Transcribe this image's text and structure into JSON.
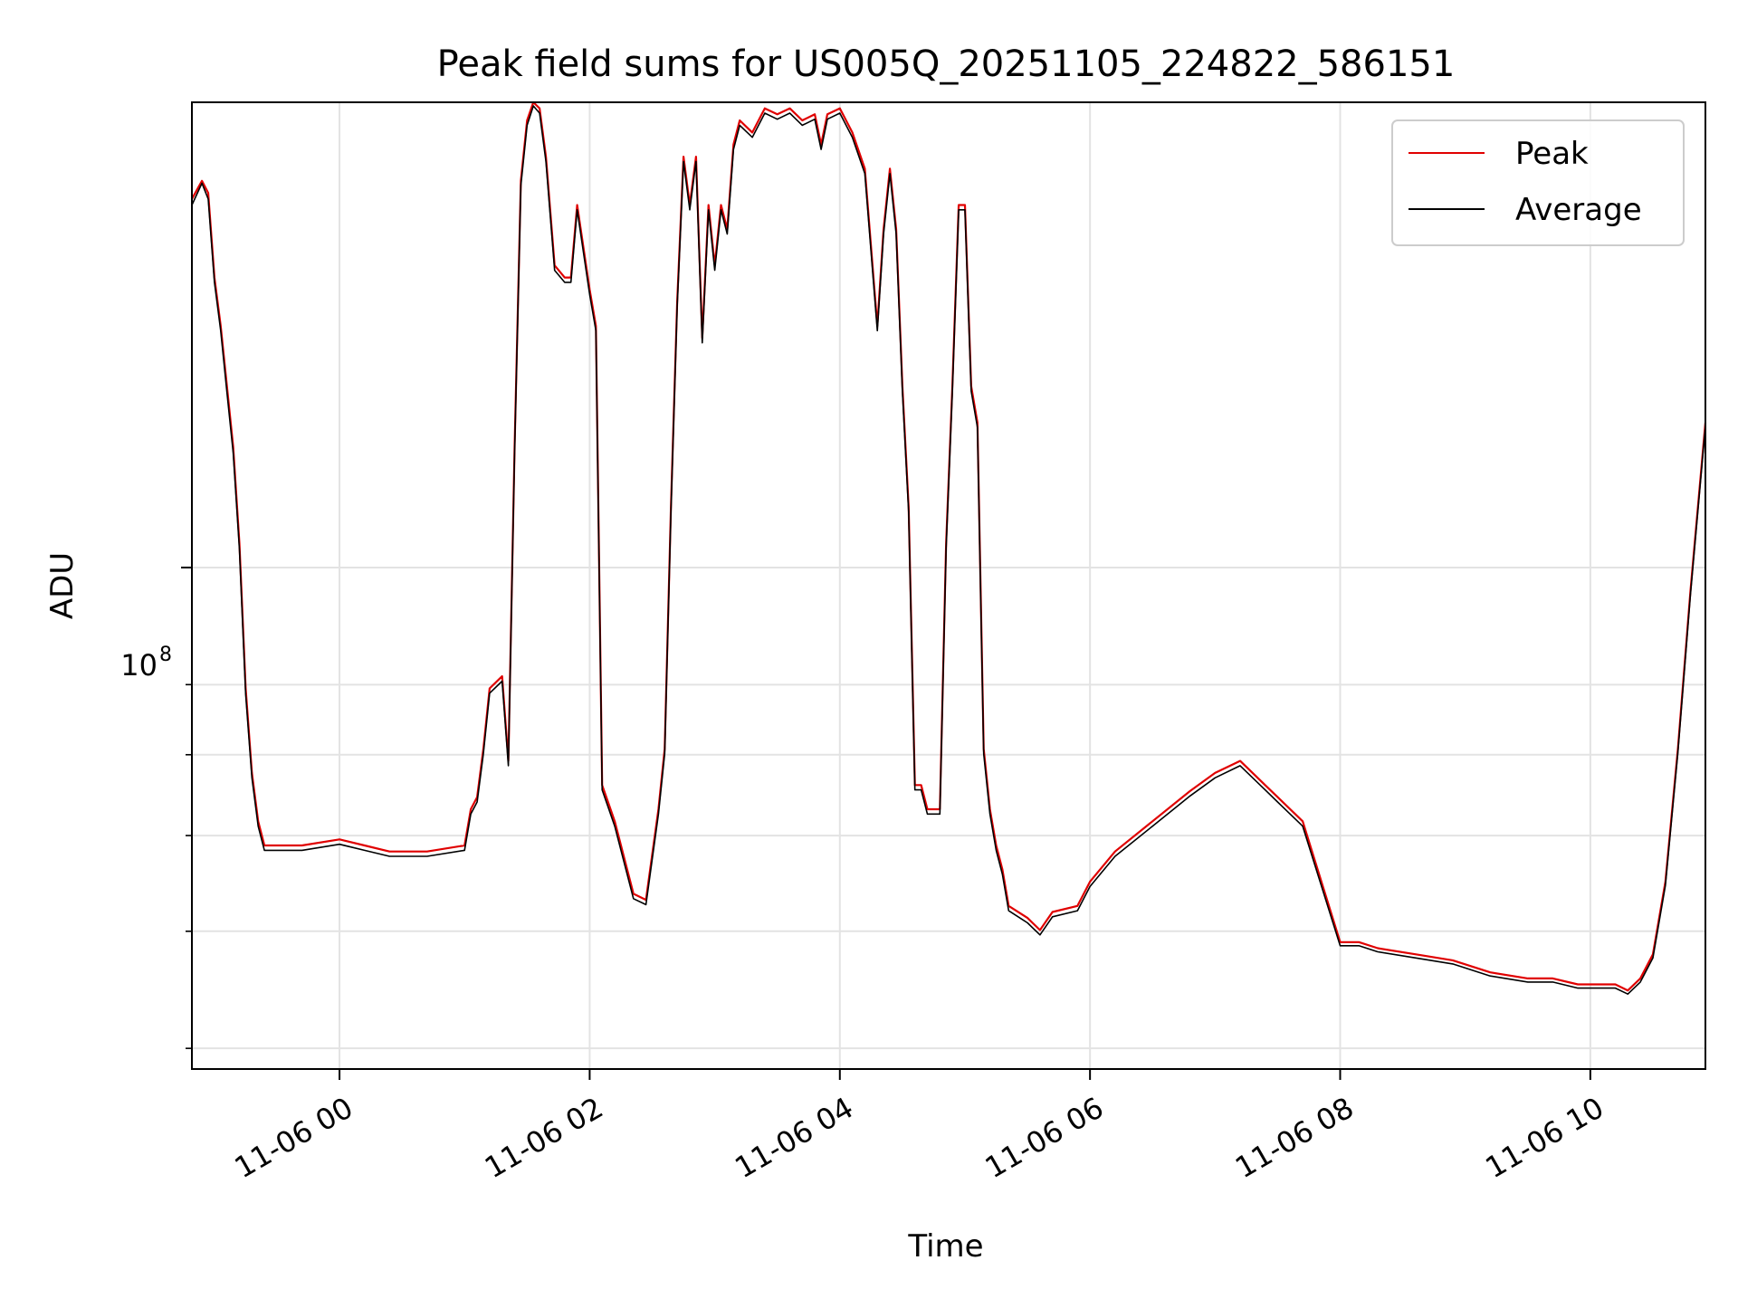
{
  "chart_data": {
    "type": "line",
    "title": "Peak field sums for US005Q_20251105_224822_586151",
    "xlabel": "Time",
    "ylabel": "ADU",
    "xlim": [
      -1.18,
      10.92
    ],
    "ylim_log10": [
      7.585,
      8.385
    ],
    "yscale": "log",
    "grid": true,
    "legend_position": "top-right",
    "x_ticks": [
      {
        "value": 0,
        "label": "11-06 00"
      },
      {
        "value": 2,
        "label": "11-06 02"
      },
      {
        "value": 4,
        "label": "11-06 04"
      },
      {
        "value": 6,
        "label": "11-06 06"
      },
      {
        "value": 8,
        "label": "11-06 08"
      },
      {
        "value": 10,
        "label": "11-06 10"
      }
    ],
    "y_major_tick": {
      "base": "10",
      "exponent": "8",
      "log10": 8
    },
    "y_minor_ticks_log10": [
      7.6021,
      7.699,
      7.7782,
      7.8451,
      7.9031
    ],
    "series": [
      {
        "name": "Peak",
        "color": "#e00000",
        "x": [
          -1.18,
          -1.1,
          -1.05,
          -1.0,
          -0.95,
          -0.9,
          -0.85,
          -0.8,
          -0.75,
          -0.7,
          -0.65,
          -0.6,
          -0.5,
          -0.3,
          0.0,
          0.2,
          0.4,
          0.7,
          1.0,
          1.05,
          1.1,
          1.15,
          1.2,
          1.3,
          1.35,
          1.4,
          1.45,
          1.5,
          1.55,
          1.6,
          1.65,
          1.72,
          1.8,
          1.85,
          1.9,
          2.0,
          2.05,
          2.1,
          2.2,
          2.25,
          2.35,
          2.45,
          2.55,
          2.6,
          2.65,
          2.7,
          2.75,
          2.8,
          2.85,
          2.9,
          2.95,
          3.0,
          3.05,
          3.1,
          3.15,
          3.2,
          3.3,
          3.4,
          3.5,
          3.6,
          3.7,
          3.8,
          3.85,
          3.9,
          4.0,
          4.1,
          4.2,
          4.3,
          4.35,
          4.4,
          4.45,
          4.5,
          4.55,
          4.6,
          4.65,
          4.7,
          4.75,
          4.8,
          4.85,
          4.9,
          4.95,
          5.0,
          5.05,
          5.1,
          5.15,
          5.2,
          5.25,
          5.3,
          5.35,
          5.5,
          5.6,
          5.7,
          5.9,
          6.0,
          6.2,
          6.5,
          6.8,
          7.0,
          7.2,
          7.4,
          7.5,
          7.7,
          8.0,
          8.1,
          8.15,
          8.3,
          8.6,
          8.9,
          9.2,
          9.5,
          9.7,
          9.9,
          10.1,
          10.2,
          10.3,
          10.4,
          10.5,
          10.6,
          10.7,
          10.8,
          10.92
        ],
        "y_log10": [
          8.305,
          8.32,
          8.31,
          8.24,
          8.2,
          8.15,
          8.1,
          8.02,
          7.9,
          7.83,
          7.79,
          7.77,
          7.77,
          7.77,
          7.775,
          7.77,
          7.765,
          7.765,
          7.77,
          7.8,
          7.81,
          7.85,
          7.9,
          7.91,
          7.84,
          8.1,
          8.32,
          8.37,
          8.385,
          8.38,
          8.34,
          8.25,
          8.24,
          8.24,
          8.3,
          8.23,
          8.2,
          7.82,
          7.79,
          7.77,
          7.73,
          7.725,
          7.8,
          7.85,
          8.05,
          8.22,
          8.34,
          8.3,
          8.34,
          8.19,
          8.3,
          8.25,
          8.3,
          8.28,
          8.35,
          8.37,
          8.36,
          8.38,
          8.375,
          8.38,
          8.37,
          8.375,
          8.35,
          8.375,
          8.38,
          8.36,
          8.33,
          8.2,
          8.28,
          8.33,
          8.28,
          8.15,
          8.05,
          7.82,
          7.82,
          7.8,
          7.8,
          7.8,
          8.02,
          8.15,
          8.3,
          8.3,
          8.15,
          8.12,
          7.85,
          7.8,
          7.77,
          7.75,
          7.72,
          7.71,
          7.7,
          7.715,
          7.72,
          7.74,
          7.765,
          7.79,
          7.815,
          7.83,
          7.84,
          7.82,
          7.81,
          7.79,
          7.69,
          7.69,
          7.69,
          7.685,
          7.68,
          7.675,
          7.665,
          7.66,
          7.66,
          7.655,
          7.655,
          7.655,
          7.65,
          7.66,
          7.68,
          7.74,
          7.85,
          7.98,
          8.12
        ]
      },
      {
        "name": "Average",
        "color": "#000000",
        "x": [
          -1.18,
          -1.1,
          -1.05,
          -1.0,
          -0.95,
          -0.9,
          -0.85,
          -0.8,
          -0.75,
          -0.7,
          -0.65,
          -0.6,
          -0.5,
          -0.3,
          0.0,
          0.2,
          0.4,
          0.7,
          1.0,
          1.05,
          1.1,
          1.15,
          1.2,
          1.3,
          1.35,
          1.4,
          1.45,
          1.5,
          1.55,
          1.6,
          1.65,
          1.72,
          1.8,
          1.85,
          1.9,
          2.0,
          2.05,
          2.1,
          2.2,
          2.25,
          2.35,
          2.45,
          2.55,
          2.6,
          2.65,
          2.7,
          2.75,
          2.8,
          2.85,
          2.9,
          2.95,
          3.0,
          3.05,
          3.1,
          3.15,
          3.2,
          3.3,
          3.4,
          3.5,
          3.6,
          3.7,
          3.8,
          3.85,
          3.9,
          4.0,
          4.1,
          4.2,
          4.3,
          4.35,
          4.4,
          4.45,
          4.5,
          4.55,
          4.6,
          4.65,
          4.7,
          4.75,
          4.8,
          4.85,
          4.9,
          4.95,
          5.0,
          5.05,
          5.1,
          5.15,
          5.2,
          5.25,
          5.3,
          5.35,
          5.5,
          5.6,
          5.7,
          5.9,
          6.0,
          6.2,
          6.5,
          6.8,
          7.0,
          7.2,
          7.4,
          7.5,
          7.7,
          8.0,
          8.1,
          8.15,
          8.3,
          8.6,
          8.9,
          9.2,
          9.5,
          9.7,
          9.9,
          10.1,
          10.2,
          10.3,
          10.4,
          10.5,
          10.6,
          10.7,
          10.8,
          10.92
        ],
        "y_log10": [
          8.3,
          8.318,
          8.305,
          8.236,
          8.196,
          8.145,
          8.095,
          8.015,
          7.895,
          7.826,
          7.786,
          7.766,
          7.766,
          7.766,
          7.771,
          7.766,
          7.761,
          7.761,
          7.766,
          7.796,
          7.806,
          7.846,
          7.896,
          7.906,
          7.836,
          8.096,
          8.316,
          8.366,
          8.382,
          8.376,
          8.336,
          8.246,
          8.236,
          8.236,
          8.296,
          8.226,
          8.196,
          7.816,
          7.786,
          7.766,
          7.726,
          7.721,
          7.796,
          7.846,
          8.046,
          8.216,
          8.336,
          8.296,
          8.336,
          8.186,
          8.296,
          8.246,
          8.296,
          8.276,
          8.346,
          8.366,
          8.356,
          8.376,
          8.371,
          8.376,
          8.366,
          8.371,
          8.346,
          8.371,
          8.376,
          8.356,
          8.326,
          8.196,
          8.276,
          8.326,
          8.276,
          8.146,
          8.046,
          7.816,
          7.816,
          7.796,
          7.796,
          7.796,
          8.016,
          8.146,
          8.296,
          8.296,
          8.146,
          8.116,
          7.846,
          7.796,
          7.766,
          7.746,
          7.716,
          7.706,
          7.696,
          7.711,
          7.716,
          7.736,
          7.761,
          7.786,
          7.811,
          7.826,
          7.836,
          7.816,
          7.806,
          7.786,
          7.687,
          7.687,
          7.687,
          7.682,
          7.677,
          7.672,
          7.662,
          7.657,
          7.657,
          7.652,
          7.652,
          7.652,
          7.647,
          7.657,
          7.677,
          7.737,
          7.847,
          7.977,
          8.117
        ]
      }
    ]
  }
}
